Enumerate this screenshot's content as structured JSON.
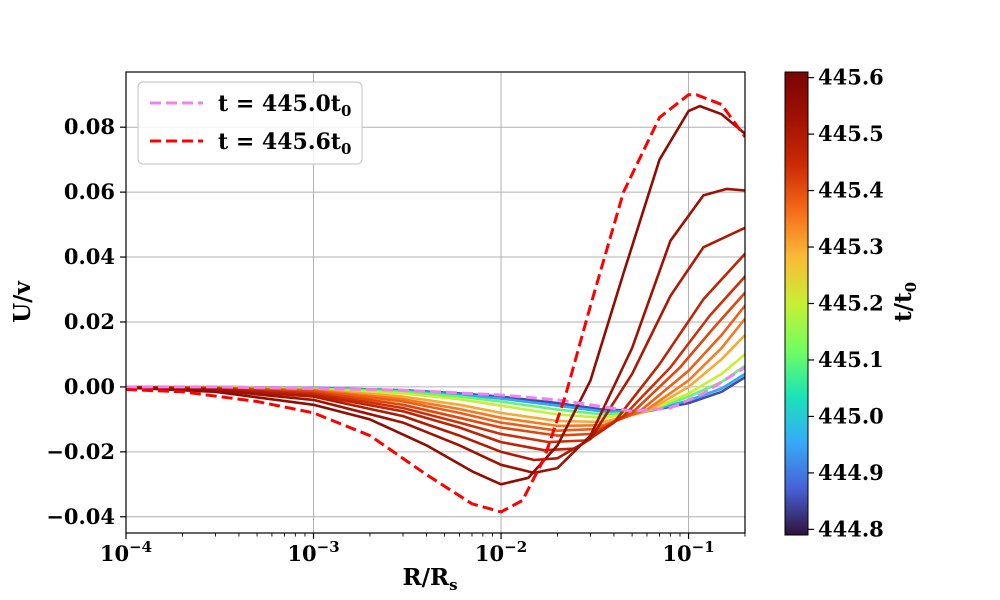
{
  "chart_data": {
    "type": "line",
    "title": "",
    "xlabel": "R/R",
    "xlabel_sub": "s",
    "ylabel": "U/v",
    "xscale": "log",
    "xlim": [
      0.0001,
      0.2
    ],
    "ylim": [
      -0.045,
      0.097
    ],
    "grid": true,
    "x_ticks": [
      {
        "value": 0.0001,
        "base": "10",
        "exp": "−4"
      },
      {
        "value": 0.001,
        "base": "10",
        "exp": "−3"
      },
      {
        "value": 0.01,
        "base": "10",
        "exp": "−2"
      },
      {
        "value": 0.1,
        "base": "10",
        "exp": "−1"
      }
    ],
    "y_ticks": [
      {
        "value": -0.04,
        "label": "−0.04"
      },
      {
        "value": -0.02,
        "label": "−0.02"
      },
      {
        "value": 0.0,
        "label": "0.00"
      },
      {
        "value": 0.02,
        "label": "0.02"
      },
      {
        "value": 0.04,
        "label": "0.04"
      },
      {
        "value": 0.06,
        "label": "0.06"
      },
      {
        "value": 0.08,
        "label": "0.08"
      }
    ],
    "legend": {
      "placement": "top-left",
      "entries": [
        {
          "prefix": "t = 445.0t",
          "sub": "0",
          "color": "#ee82ee",
          "style": "dashed"
        },
        {
          "prefix": "t = 445.6t",
          "sub": "0",
          "color": "#ff0000",
          "style": "dashed"
        }
      ]
    },
    "colorbar": {
      "label": "t/t",
      "label_sub": "0",
      "cmap": "turbo",
      "vmin": 444.79,
      "vmax": 445.61,
      "ticks": [
        {
          "value": 444.8,
          "label": "444.8"
        },
        {
          "value": 444.9,
          "label": "444.9"
        },
        {
          "value": 445.0,
          "label": "445.0"
        },
        {
          "value": 445.1,
          "label": "445.1"
        },
        {
          "value": 445.2,
          "label": "445.2"
        },
        {
          "value": 445.3,
          "label": "445.3"
        },
        {
          "value": 445.4,
          "label": "445.4"
        },
        {
          "value": 445.5,
          "label": "445.5"
        },
        {
          "value": 445.6,
          "label": "445.6"
        }
      ]
    },
    "series": [
      {
        "name": "t = 445.0t0",
        "t": 445.0,
        "color": "#ee82ee",
        "style": "dashed",
        "x": [
          0.0001,
          0.0003,
          0.001,
          0.003,
          0.01,
          0.02,
          0.03,
          0.05,
          0.08,
          0.12,
          0.2
        ],
        "y": [
          0.0,
          0.0,
          -0.0005,
          -0.001,
          -0.0025,
          -0.004,
          -0.0055,
          -0.0075,
          -0.0065,
          -0.002,
          0.006
        ]
      },
      {
        "name": "t = 445.6t0",
        "t": 445.6,
        "color": "#ff0000",
        "style": "dashed",
        "x": [
          0.0001,
          0.0002,
          0.0005,
          0.001,
          0.002,
          0.004,
          0.007,
          0.01,
          0.013,
          0.017,
          0.022,
          0.03,
          0.045,
          0.07,
          0.1,
          0.11,
          0.15,
          0.2
        ],
        "y": [
          -0.0008,
          -0.0015,
          -0.0045,
          -0.008,
          -0.015,
          -0.027,
          -0.036,
          -0.0385,
          -0.035,
          -0.022,
          -0.003,
          0.025,
          0.06,
          0.083,
          0.09,
          0.09,
          0.087,
          0.077
        ]
      },
      {
        "name": "t = 445.56t0",
        "t": 445.56,
        "style": "solid",
        "x": [
          0.0001,
          0.0003,
          0.001,
          0.002,
          0.004,
          0.007,
          0.01,
          0.014,
          0.02,
          0.03,
          0.045,
          0.07,
          0.1,
          0.115,
          0.15,
          0.2
        ],
        "y": [
          -0.0002,
          -0.0015,
          -0.0055,
          -0.01,
          -0.018,
          -0.026,
          -0.03,
          -0.028,
          -0.018,
          0.002,
          0.035,
          0.07,
          0.085,
          0.0865,
          0.084,
          0.078
        ]
      },
      {
        "name": "t = 445.53t0",
        "t": 445.53,
        "style": "solid",
        "x": [
          0.0001,
          0.0003,
          0.001,
          0.003,
          0.006,
          0.01,
          0.015,
          0.02,
          0.03,
          0.05,
          0.08,
          0.12,
          0.16,
          0.2
        ],
        "y": [
          -0.0002,
          -0.001,
          -0.004,
          -0.011,
          -0.018,
          -0.024,
          -0.0265,
          -0.025,
          -0.015,
          0.012,
          0.045,
          0.059,
          0.061,
          0.0605
        ]
      },
      {
        "name": "t = 445.50t0",
        "t": 445.5,
        "style": "solid",
        "x": [
          0.0001,
          0.0003,
          0.001,
          0.003,
          0.006,
          0.01,
          0.015,
          0.02,
          0.03,
          0.05,
          0.08,
          0.12,
          0.2
        ],
        "y": [
          -0.0001,
          -0.0008,
          -0.003,
          -0.009,
          -0.015,
          -0.02,
          -0.0225,
          -0.022,
          -0.016,
          0.004,
          0.028,
          0.043,
          0.049
        ]
      },
      {
        "name": "t = 445.47t0",
        "t": 445.47,
        "style": "solid",
        "x": [
          0.0001,
          0.0003,
          0.001,
          0.003,
          0.006,
          0.01,
          0.017,
          0.025,
          0.04,
          0.07,
          0.12,
          0.2
        ],
        "y": [
          -0.0001,
          -0.0006,
          -0.0025,
          -0.0075,
          -0.0125,
          -0.017,
          -0.0195,
          -0.019,
          -0.011,
          0.007,
          0.027,
          0.041
        ]
      },
      {
        "name": "t = 445.44t0",
        "t": 445.44,
        "style": "solid",
        "x": [
          0.0001,
          0.0003,
          0.001,
          0.003,
          0.006,
          0.01,
          0.018,
          0.028,
          0.045,
          0.08,
          0.13,
          0.2
        ],
        "y": [
          -0.0001,
          -0.0005,
          -0.002,
          -0.0065,
          -0.011,
          -0.0145,
          -0.017,
          -0.0165,
          -0.009,
          0.006,
          0.022,
          0.034
        ]
      },
      {
        "name": "t = 445.41t0",
        "t": 445.41,
        "style": "solid",
        "x": [
          0.0001,
          0.0003,
          0.001,
          0.003,
          0.006,
          0.01,
          0.02,
          0.03,
          0.05,
          0.09,
          0.14,
          0.2
        ],
        "y": [
          -0.0001,
          -0.0004,
          -0.0015,
          -0.0055,
          -0.0095,
          -0.0125,
          -0.015,
          -0.0145,
          -0.008,
          0.006,
          0.019,
          0.029
        ]
      },
      {
        "name": "t = 445.38t0",
        "t": 445.38,
        "style": "solid",
        "x": [
          0.0001,
          0.0003,
          0.001,
          0.003,
          0.006,
          0.01,
          0.02,
          0.032,
          0.055,
          0.1,
          0.15,
          0.2
        ],
        "y": [
          0.0,
          -0.0003,
          -0.0012,
          -0.0045,
          -0.008,
          -0.011,
          -0.0135,
          -0.013,
          -0.0075,
          0.005,
          0.016,
          0.025
        ]
      },
      {
        "name": "t = 445.35t0",
        "t": 445.35,
        "style": "solid",
        "x": [
          0.0001,
          0.0003,
          0.001,
          0.003,
          0.006,
          0.01,
          0.02,
          0.035,
          0.06,
          0.1,
          0.15,
          0.2
        ],
        "y": [
          0.0,
          -0.0002,
          -0.001,
          -0.0038,
          -0.0068,
          -0.0095,
          -0.012,
          -0.0118,
          -0.007,
          0.002,
          0.012,
          0.021
        ]
      },
      {
        "name": "t = 445.30t0",
        "t": 445.3,
        "style": "solid",
        "x": [
          0.0001,
          0.0003,
          0.001,
          0.003,
          0.006,
          0.01,
          0.02,
          0.035,
          0.06,
          0.1,
          0.15,
          0.2
        ],
        "y": [
          0.0,
          -0.0002,
          -0.0008,
          -0.003,
          -0.0055,
          -0.008,
          -0.0105,
          -0.0108,
          -0.0075,
          0.0,
          0.0085,
          0.016
        ]
      },
      {
        "name": "t = 445.20t0",
        "t": 445.2,
        "style": "solid",
        "x": [
          0.0001,
          0.0003,
          0.001,
          0.003,
          0.006,
          0.01,
          0.02,
          0.035,
          0.06,
          0.1,
          0.15,
          0.2
        ],
        "y": [
          0.0,
          -0.0001,
          -0.0006,
          -0.002,
          -0.0038,
          -0.0058,
          -0.0085,
          -0.0095,
          -0.0075,
          -0.002,
          0.004,
          0.01
        ]
      },
      {
        "name": "t = 445.10t0",
        "t": 445.1,
        "style": "solid",
        "x": [
          0.0001,
          0.0003,
          0.001,
          0.003,
          0.006,
          0.01,
          0.02,
          0.035,
          0.06,
          0.1,
          0.15,
          0.2
        ],
        "y": [
          0.0,
          0.0,
          -0.0005,
          -0.0015,
          -0.003,
          -0.0045,
          -0.007,
          -0.0085,
          -0.0075,
          -0.003,
          0.0015,
          0.0065
        ]
      },
      {
        "name": "t = 444.95t0",
        "t": 444.95,
        "style": "solid",
        "x": [
          0.0001,
          0.0003,
          0.001,
          0.003,
          0.006,
          0.01,
          0.02,
          0.035,
          0.06,
          0.1,
          0.15,
          0.2
        ],
        "y": [
          0.0,
          0.0,
          -0.0004,
          -0.0012,
          -0.0024,
          -0.0036,
          -0.0058,
          -0.0076,
          -0.0075,
          -0.0042,
          -0.0005,
          0.004
        ]
      },
      {
        "name": "t = 444.85t0",
        "t": 444.85,
        "style": "solid",
        "x": [
          0.0001,
          0.0003,
          0.001,
          0.003,
          0.006,
          0.01,
          0.02,
          0.035,
          0.06,
          0.1,
          0.15,
          0.2
        ],
        "y": [
          0.0,
          0.0,
          -0.0003,
          -0.001,
          -0.002,
          -0.003,
          -0.005,
          -0.007,
          -0.0075,
          -0.005,
          -0.0015,
          0.003
        ]
      }
    ]
  }
}
